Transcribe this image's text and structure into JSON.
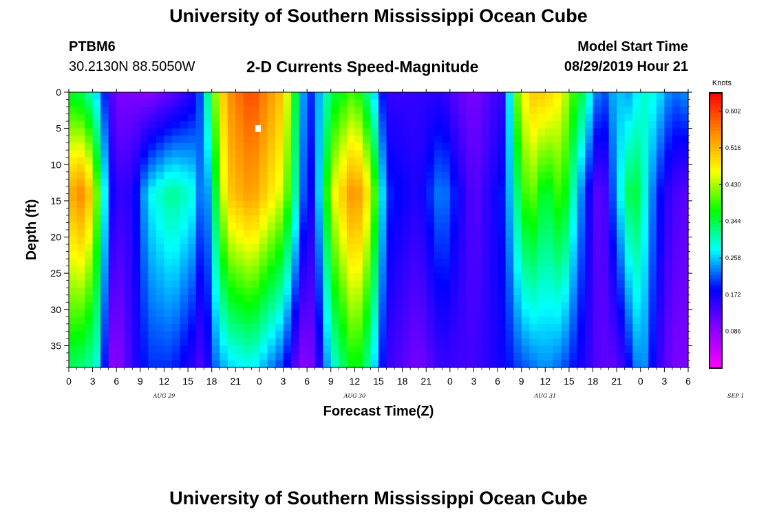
{
  "header": {
    "title_top": "University of Southern Mississippi Ocean Cube",
    "title_bottom": "University of Southern Mississippi Ocean Cube",
    "station_id": "PTBM6",
    "station_coords": "30.2130N 88.5050W",
    "subtitle": "2-D Currents Speed-Magnitude",
    "start_label": "Model Start Time",
    "start_value": "08/29/2019 Hour 21"
  },
  "chart_data": {
    "type": "heatmap",
    "title": "2-D Currents Speed-Magnitude",
    "xlabel": "Forecast Time(Z)",
    "ylabel": "Depth (ft)",
    "x_tick_labels": [
      "0",
      "3",
      "6",
      "9",
      "12",
      "15",
      "18",
      "21",
      "0",
      "3",
      "6",
      "9",
      "12",
      "15",
      "18",
      "21",
      "0",
      "3",
      "6",
      "9",
      "12",
      "15",
      "18",
      "21",
      "0",
      "3",
      "6"
    ],
    "x_range_hours": [
      0,
      78
    ],
    "day_labels": [
      {
        "text": "AUG 29",
        "hour": 12
      },
      {
        "text": "AUG 30",
        "hour": 36
      },
      {
        "text": "AUG 31",
        "hour": 60
      },
      {
        "text": "SEP 1",
        "hour": 84
      }
    ],
    "y_tick_labels": [
      "0",
      "5",
      "10",
      "15",
      "20",
      "25",
      "30",
      "35"
    ],
    "ylim": [
      0,
      38
    ],
    "y_inverted": true,
    "colorbar": {
      "unit": "Knots",
      "tick_labels": [
        "0.602",
        "0.516",
        "0.430",
        "0.344",
        "0.258",
        "0.172",
        "0.086"
      ],
      "tick_values": [
        0.602,
        0.516,
        0.43,
        0.344,
        0.258,
        0.172,
        0.086
      ],
      "range": [
        0.0,
        0.645
      ],
      "colors": [
        "#ff00ff",
        "#8800ff",
        "#0000ff",
        "#00ffff",
        "#00ff00",
        "#ffff00",
        "#ff8800",
        "#ff0000"
      ]
    },
    "time_profile": [
      {
        "hour": 0,
        "surface": 0.36,
        "mid": 0.52,
        "bottom": 0.34
      },
      {
        "hour": 2,
        "surface": 0.33,
        "mid": 0.56,
        "bottom": 0.32
      },
      {
        "hour": 4,
        "surface": 0.24,
        "mid": 0.36,
        "bottom": 0.28
      },
      {
        "hour": 5,
        "surface": 0.15,
        "mid": 0.2,
        "bottom": 0.1
      },
      {
        "hour": 6,
        "surface": 0.1,
        "mid": 0.15,
        "bottom": 0.08
      },
      {
        "hour": 8,
        "surface": 0.1,
        "mid": 0.16,
        "bottom": 0.15
      },
      {
        "hour": 10,
        "surface": 0.09,
        "mid": 0.27,
        "bottom": 0.2
      },
      {
        "hour": 13,
        "surface": 0.12,
        "mid": 0.32,
        "bottom": 0.2
      },
      {
        "hour": 16,
        "surface": 0.17,
        "mid": 0.28,
        "bottom": 0.15
      },
      {
        "hour": 17,
        "surface": 0.25,
        "mid": 0.18,
        "bottom": 0.12
      },
      {
        "hour": 18,
        "surface": 0.38,
        "mid": 0.3,
        "bottom": 0.21
      },
      {
        "hour": 20,
        "surface": 0.54,
        "mid": 0.5,
        "bottom": 0.26
      },
      {
        "hour": 23,
        "surface": 0.6,
        "mid": 0.54,
        "bottom": 0.28
      },
      {
        "hour": 27,
        "surface": 0.5,
        "mid": 0.44,
        "bottom": 0.2
      },
      {
        "hour": 29,
        "surface": 0.3,
        "mid": 0.27,
        "bottom": 0.1
      },
      {
        "hour": 30,
        "surface": 0.18,
        "mid": 0.16,
        "bottom": 0.08
      },
      {
        "hour": 31,
        "surface": 0.22,
        "mid": 0.2,
        "bottom": 0.12
      },
      {
        "hour": 33,
        "surface": 0.34,
        "mid": 0.44,
        "bottom": 0.28
      },
      {
        "hour": 36,
        "surface": 0.4,
        "mid": 0.56,
        "bottom": 0.38
      },
      {
        "hour": 38,
        "surface": 0.3,
        "mid": 0.46,
        "bottom": 0.3
      },
      {
        "hour": 40,
        "surface": 0.15,
        "mid": 0.2,
        "bottom": 0.15
      },
      {
        "hour": 44,
        "surface": 0.15,
        "mid": 0.16,
        "bottom": 0.1
      },
      {
        "hour": 47,
        "surface": 0.16,
        "mid": 0.24,
        "bottom": 0.15
      },
      {
        "hour": 49,
        "surface": 0.12,
        "mid": 0.18,
        "bottom": 0.14
      },
      {
        "hour": 51,
        "surface": 0.1,
        "mid": 0.12,
        "bottom": 0.14
      },
      {
        "hour": 55,
        "surface": 0.16,
        "mid": 0.2,
        "bottom": 0.18
      },
      {
        "hour": 56,
        "surface": 0.38,
        "mid": 0.3,
        "bottom": 0.2
      },
      {
        "hour": 58,
        "surface": 0.5,
        "mid": 0.42,
        "bottom": 0.22
      },
      {
        "hour": 60,
        "surface": 0.5,
        "mid": 0.34,
        "bottom": 0.24
      },
      {
        "hour": 62,
        "surface": 0.46,
        "mid": 0.4,
        "bottom": 0.22
      },
      {
        "hour": 65,
        "surface": 0.32,
        "mid": 0.2,
        "bottom": 0.16
      },
      {
        "hour": 67,
        "surface": 0.2,
        "mid": 0.1,
        "bottom": 0.12
      },
      {
        "hour": 69,
        "surface": 0.26,
        "mid": 0.25,
        "bottom": 0.12
      },
      {
        "hour": 71,
        "surface": 0.24,
        "mid": 0.37,
        "bottom": 0.2
      },
      {
        "hour": 72,
        "surface": 0.3,
        "mid": 0.32,
        "bottom": 0.26
      },
      {
        "hour": 74,
        "surface": 0.28,
        "mid": 0.2,
        "bottom": 0.16
      },
      {
        "hour": 76,
        "surface": 0.22,
        "mid": 0.14,
        "bottom": 0.1
      },
      {
        "hour": 78,
        "surface": 0.24,
        "mid": 0.12,
        "bottom": 0.1
      }
    ]
  }
}
